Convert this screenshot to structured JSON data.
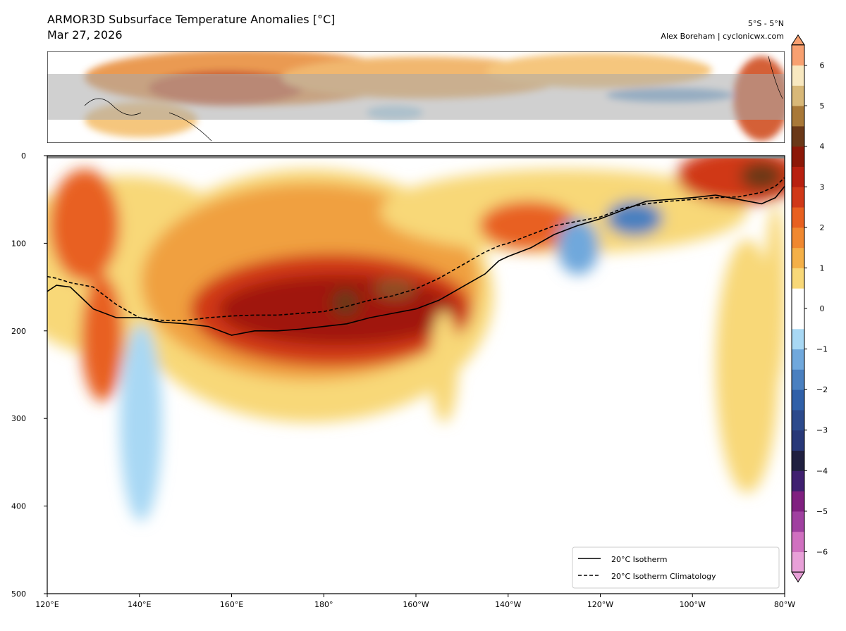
{
  "chart_data": {
    "type": "contour",
    "title": "ARMOR3D Subsurface Temperature Anomalies [°C]",
    "subtitle": "Mar 27, 2026",
    "region": "5°S - 5°N",
    "credit": "Alex Boreham | cyclonicwx.com",
    "xlim": [
      120,
      280
    ],
    "xticks": [
      {
        "value": 120,
        "label": "120°E"
      },
      {
        "value": 140,
        "label": "140°E"
      },
      {
        "value": 160,
        "label": "160°E"
      },
      {
        "value": 180,
        "label": "180°"
      },
      {
        "value": 200,
        "label": "160°W"
      },
      {
        "value": 220,
        "label": "140°W"
      },
      {
        "value": 240,
        "label": "120°W"
      },
      {
        "value": 260,
        "label": "100°W"
      },
      {
        "value": 280,
        "label": "80°W"
      }
    ],
    "ylim": [
      0,
      500
    ],
    "y_inverted": true,
    "yticks": [
      0,
      100,
      200,
      300,
      400,
      500
    ],
    "legend": "lower right",
    "x": [
      120,
      122,
      125,
      127,
      130,
      135,
      140,
      145,
      150,
      155,
      160,
      165,
      170,
      175,
      180,
      185,
      190,
      195,
      200,
      205,
      210,
      215,
      218,
      220,
      225,
      230,
      235,
      240,
      245,
      250,
      255,
      260,
      265,
      270,
      275,
      278,
      280
    ],
    "series": [
      {
        "name": "20°C Isotherm",
        "color": "#000000",
        "dash": "solid",
        "values": [
          155,
          148,
          150,
          160,
          175,
          185,
          185,
          190,
          192,
          195,
          205,
          200,
          200,
          198,
          195,
          192,
          185,
          180,
          175,
          165,
          150,
          135,
          120,
          115,
          105,
          90,
          80,
          72,
          62,
          52,
          50,
          48,
          45,
          50,
          55,
          48,
          35
        ]
      },
      {
        "name": "20°C Isotherm Climatology",
        "color": "#000000",
        "dash": "dashed",
        "values": [
          138,
          140,
          145,
          147,
          150,
          170,
          185,
          188,
          188,
          185,
          183,
          182,
          182,
          180,
          178,
          172,
          165,
          160,
          152,
          140,
          125,
          110,
          103,
          100,
          90,
          80,
          75,
          70,
          60,
          55,
          52,
          50,
          48,
          47,
          42,
          35,
          25
        ]
      }
    ],
    "colorbar": {
      "lim": [
        -6.5,
        6.5
      ],
      "ticks": [
        {
          "value": -6,
          "label": "−6"
        },
        {
          "value": -5,
          "label": "−5"
        },
        {
          "value": -4,
          "label": "−4"
        },
        {
          "value": -3,
          "label": "−3"
        },
        {
          "value": -2,
          "label": "−2"
        },
        {
          "value": -1,
          "label": "−1"
        },
        0,
        1,
        2,
        3,
        4,
        5,
        6
      ],
      "colors": [
        "#e8a0d8",
        "#d070c0",
        "#a040a0",
        "#802080",
        "#402070",
        "#202040",
        "#283878",
        "#2c4a8c",
        "#3060a8",
        "#4a80c0",
        "#70a8dc",
        "#a8d8f4",
        "#ffffff",
        "#ffffff",
        "#f8d878",
        "#f4b048",
        "#f08830",
        "#e86020",
        "#d03818",
        "#b82010",
        "#8c1808",
        "#6a3818",
        "#a87838",
        "#d8b878",
        "#f8e8c0",
        "#f8a070"
      ]
    }
  }
}
